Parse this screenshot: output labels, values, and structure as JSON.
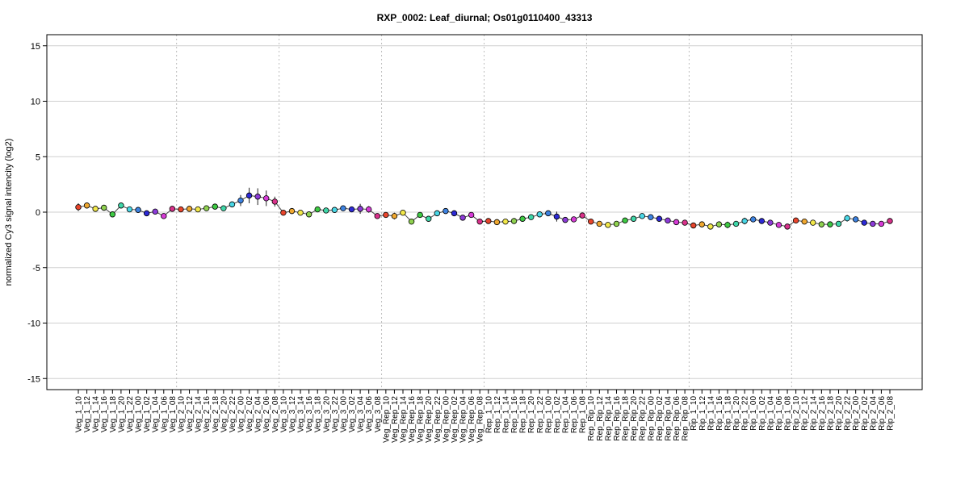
{
  "chart_data": {
    "type": "line",
    "title": "RXP_0002: Leaf_diurnal; Os01g0110400_43313",
    "xlabel": "",
    "ylabel": "normalized Cy3 signal intencity (log2)",
    "ylim": [
      -16,
      16
    ],
    "yticks": [
      -15,
      -10,
      -5,
      0,
      5,
      10,
      15
    ],
    "grid": {
      "horizontal": true,
      "vertical_group_separators": true
    },
    "legend": "none",
    "point_colors": [
      "#e8452c",
      "#f0a830",
      "#f2e84a",
      "#8fd14f",
      "#3ec943",
      "#3fd6a8",
      "#4ad7e6",
      "#3d82e0",
      "#2d2ad6",
      "#8c3bd8",
      "#d63bd6",
      "#d8318a"
    ],
    "categories": [
      "Veg_1_10",
      "Veg_1_12",
      "Veg_1_14",
      "Veg_1_16",
      "Veg_1_18",
      "Veg_1_20",
      "Veg_1_22",
      "Veg_1_00",
      "Veg_1_02",
      "Veg_1_04",
      "Veg_1_06",
      "Veg_1_08",
      "Veg_2_10",
      "Veg_2_12",
      "Veg_2_14",
      "Veg_2_16",
      "Veg_2_18",
      "Veg_2_20",
      "Veg_2_22",
      "Veg_2_00",
      "Veg_2_02",
      "Veg_2_04",
      "Veg_2_06",
      "Veg_2_08",
      "Veg_3_10",
      "Veg_3_12",
      "Veg_3_14",
      "Veg_3_16",
      "Veg_3_18",
      "Veg_3_20",
      "Veg_3_22",
      "Veg_3_00",
      "Veg_3_02",
      "Veg_3_04",
      "Veg_3_06",
      "Veg_3_08",
      "Veg_Rep_10",
      "Veg_Rep_12",
      "Veg_Rep_14",
      "Veg_Rep_16",
      "Veg_Rep_18",
      "Veg_Rep_20",
      "Veg_Rep_22",
      "Veg_Rep_00",
      "Veg_Rep_02",
      "Veg_Rep_04",
      "Veg_Rep_06",
      "Veg_Rep_08",
      "Rep_1_10",
      "Rep_1_12",
      "Rep_1_14",
      "Rep_1_16",
      "Rep_1_18",
      "Rep_1_20",
      "Rep_1_22",
      "Rep_1_00",
      "Rep_1_02",
      "Rep_1_04",
      "Rep_1_06",
      "Rep_1_08",
      "Rep_Rip_10",
      "Rep_Rip_12",
      "Rep_Rip_14",
      "Rep_Rip_16",
      "Rep_Rip_18",
      "Rep_Rip_20",
      "Rep_Rip_22",
      "Rep_Rip_00",
      "Rep_Rip_02",
      "Rep_Rip_04",
      "Rep_Rip_06",
      "Rep_Rip_08",
      "Rip_1_10",
      "Rip_1_12",
      "Rip_1_14",
      "Rip_1_16",
      "Rip_1_18",
      "Rip_1_20",
      "Rip_1_22",
      "Rip_1_00",
      "Rip_1_02",
      "Rip_1_04",
      "Rip_1_06",
      "Rip_1_08",
      "Rip_2_10",
      "Rip_2_12",
      "Rip_2_14",
      "Rip_2_16",
      "Rip_2_18",
      "Rip_2_20",
      "Rip_2_22",
      "Rip_2_00",
      "Rip_2_02",
      "Rip_2_04",
      "Rip_2_06",
      "Rip_2_08"
    ],
    "values": [
      0.45,
      0.6,
      0.3,
      0.4,
      -0.2,
      0.6,
      0.25,
      0.2,
      -0.1,
      0.05,
      -0.35,
      0.3,
      0.25,
      0.3,
      0.25,
      0.35,
      0.5,
      0.35,
      0.7,
      1.05,
      1.5,
      1.4,
      1.25,
      0.95,
      -0.05,
      0.1,
      -0.05,
      -0.2,
      0.25,
      0.15,
      0.2,
      0.35,
      0.25,
      0.3,
      0.25,
      -0.35,
      -0.25,
      -0.35,
      -0.05,
      -0.85,
      -0.25,
      -0.6,
      -0.1,
      0.1,
      -0.1,
      -0.5,
      -0.25,
      -0.85,
      -0.8,
      -0.9,
      -0.85,
      -0.8,
      -0.6,
      -0.45,
      -0.2,
      -0.1,
      -0.4,
      -0.7,
      -0.65,
      -0.3,
      -0.85,
      -1.05,
      -1.15,
      -1.05,
      -0.75,
      -0.6,
      -0.35,
      -0.45,
      -0.6,
      -0.75,
      -0.9,
      -0.95,
      -1.2,
      -1.1,
      -1.3,
      -1.1,
      -1.15,
      -1.05,
      -0.8,
      -0.65,
      -0.8,
      -0.95,
      -1.15,
      -1.3,
      -0.75,
      -0.85,
      -0.95,
      -1.1,
      -1.1,
      -1.05,
      -0.55,
      -0.65,
      -0.95,
      -1.05,
      -1.05,
      -0.8
    ],
    "errors": [
      0.35,
      0.1,
      0.05,
      0.05,
      0.05,
      0.05,
      0.05,
      0.05,
      0.05,
      0.2,
      0.05,
      0.05,
      0.2,
      0.1,
      0.05,
      0.05,
      0.05,
      0.05,
      0.05,
      0.5,
      0.7,
      0.75,
      0.7,
      0.45,
      0.15,
      0.05,
      0.05,
      0.2,
      0.05,
      0.15,
      0.05,
      0.2,
      0.25,
      0.45,
      0.3,
      0.1,
      0.2,
      0.3,
      0.05,
      0.25,
      0.05,
      0.05,
      0.05,
      0.05,
      0.05,
      0.1,
      0.1,
      0.05,
      0.05,
      0.15,
      0.2,
      0.1,
      0.2,
      0.1,
      0.05,
      0.05,
      0.45,
      0.1,
      0.05,
      0.05,
      0.05,
      0.05,
      0.05,
      0.05,
      0.05,
      0.05,
      0.05,
      0.05,
      0.05,
      0.05,
      0.05,
      0.05,
      0.05,
      0.05,
      0.25,
      0.25,
      0.3,
      0.25,
      0.3,
      0.05,
      0.25,
      0.05,
      0.05,
      0.05,
      0.05,
      0.05,
      0.05,
      0.05,
      0.05,
      0.1,
      0.3,
      0.05,
      0.05,
      0.05,
      0.05,
      0.05
    ]
  }
}
